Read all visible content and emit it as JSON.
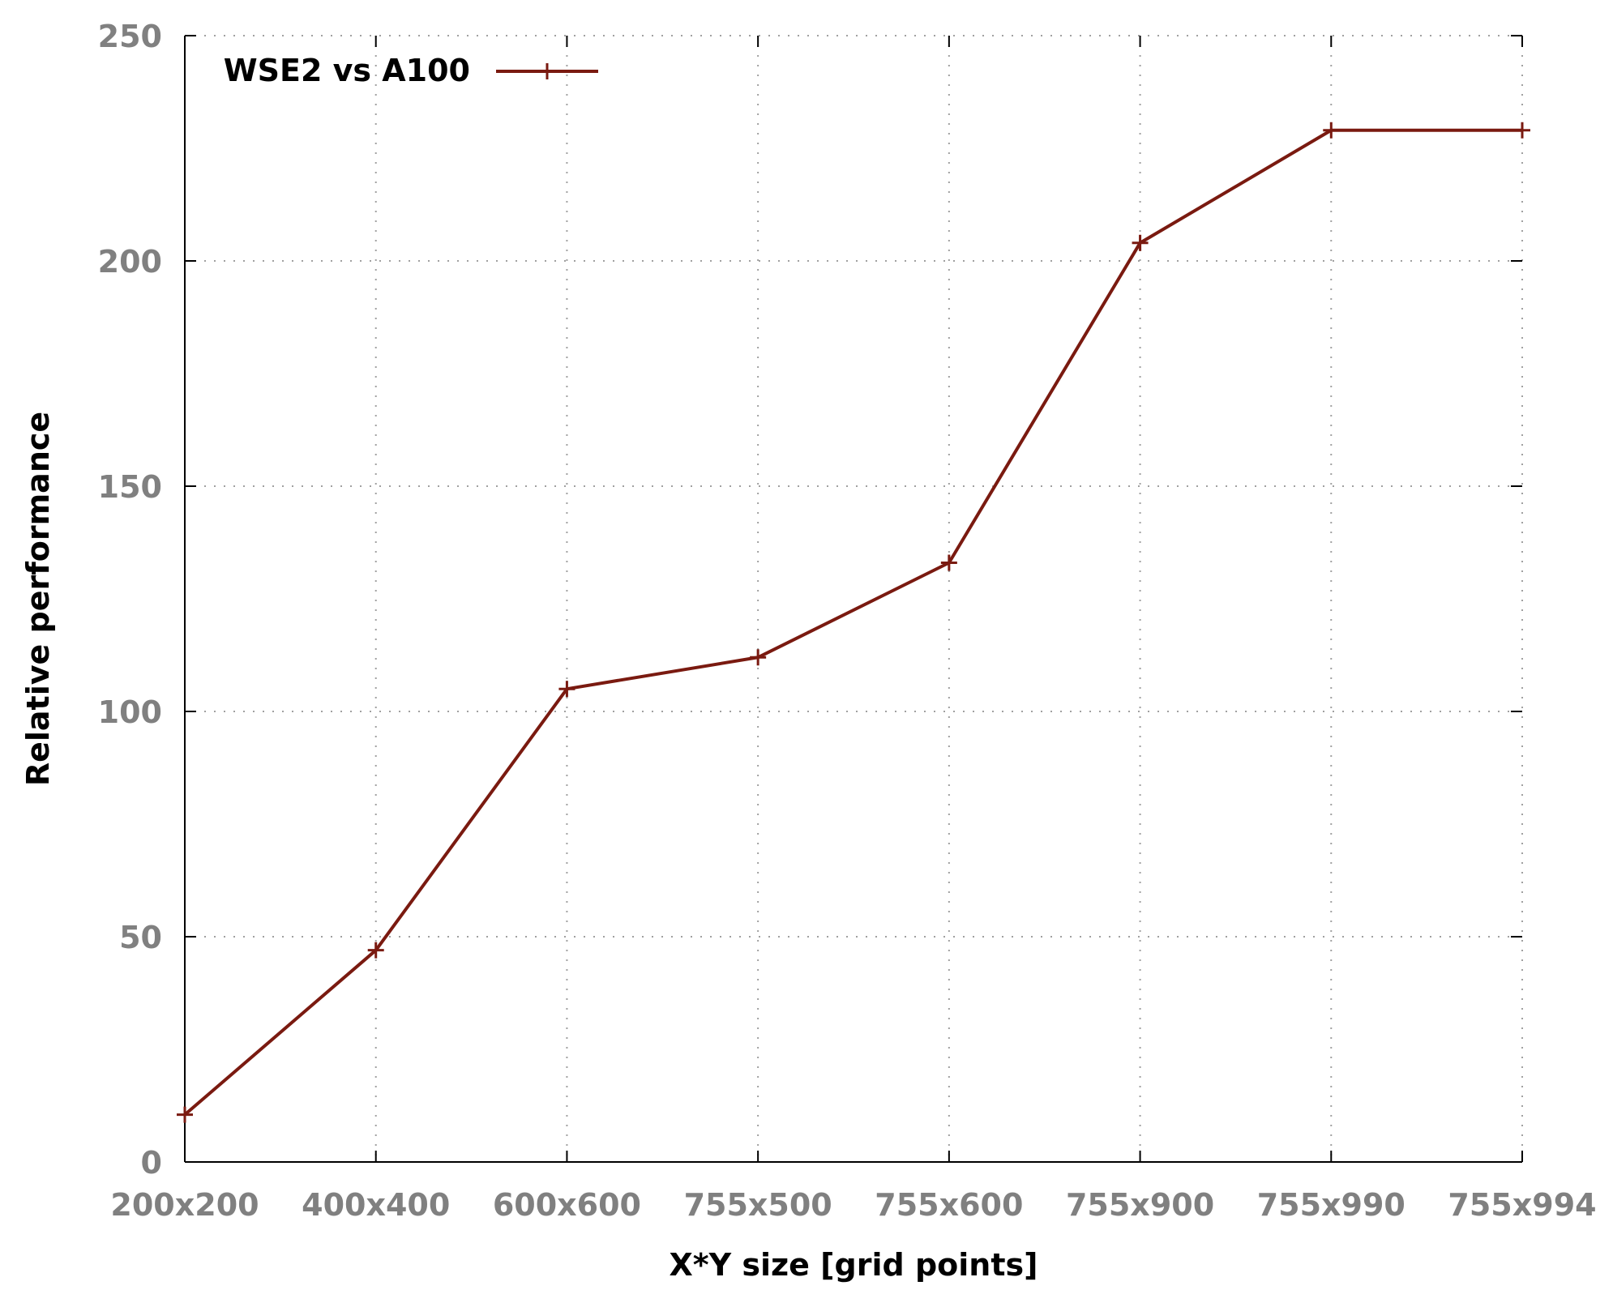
{
  "chart_data": {
    "type": "line",
    "title": "",
    "xlabel": "X*Y size [grid points]",
    "ylabel": "Relative performance",
    "categories": [
      "200x200",
      "400x400",
      "600x600",
      "755x500",
      "755x600",
      "755x900",
      "755x990",
      "755x994"
    ],
    "ylim": [
      0,
      250
    ],
    "yticks": [
      "0",
      "50",
      "100",
      "150",
      "200",
      "250"
    ],
    "grid": true,
    "legend_position": "top-left",
    "series": [
      {
        "name": "WSE2 vs A100",
        "color": "#7a1a10",
        "marker": "plus",
        "values": [
          10.5,
          47,
          105,
          112,
          133,
          204,
          229,
          229
        ]
      }
    ]
  }
}
